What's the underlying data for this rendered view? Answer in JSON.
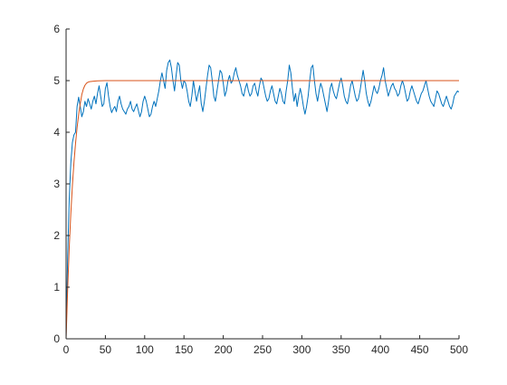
{
  "chart_data": {
    "type": "line",
    "title": "",
    "xlabel": "",
    "ylabel": "",
    "xlim": [
      0,
      500
    ],
    "ylim": [
      0,
      6
    ],
    "x_ticks": [
      0,
      50,
      100,
      150,
      200,
      250,
      300,
      350,
      400,
      450,
      500
    ],
    "y_ticks": [
      0,
      1,
      2,
      3,
      4,
      5,
      6
    ],
    "grid": false,
    "legend": "none",
    "series": [
      {
        "color": "#0072BD",
        "points": [
          [
            0,
            0
          ],
          [
            2,
            1.6
          ],
          [
            4,
            2.7
          ],
          [
            6,
            3.4
          ],
          [
            8,
            3.8
          ],
          [
            10,
            3.95
          ],
          [
            12,
            4.0
          ],
          [
            14,
            4.5
          ],
          [
            16,
            4.68
          ],
          [
            18,
            4.5
          ],
          [
            20,
            4.3
          ],
          [
            22,
            4.4
          ],
          [
            24,
            4.6
          ],
          [
            26,
            4.5
          ],
          [
            28,
            4.65
          ],
          [
            30,
            4.55
          ],
          [
            32,
            4.45
          ],
          [
            34,
            4.6
          ],
          [
            36,
            4.7
          ],
          [
            38,
            4.55
          ],
          [
            40,
            4.75
          ],
          [
            42,
            4.9
          ],
          [
            44,
            4.7
          ],
          [
            46,
            4.5
          ],
          [
            48,
            4.55
          ],
          [
            50,
            4.85
          ],
          [
            52,
            4.96
          ],
          [
            54,
            4.7
          ],
          [
            56,
            4.5
          ],
          [
            58,
            4.38
          ],
          [
            60,
            4.45
          ],
          [
            62,
            4.5
          ],
          [
            64,
            4.4
          ],
          [
            66,
            4.6
          ],
          [
            68,
            4.7
          ],
          [
            70,
            4.55
          ],
          [
            72,
            4.45
          ],
          [
            74,
            4.4
          ],
          [
            76,
            4.35
          ],
          [
            78,
            4.45
          ],
          [
            80,
            4.5
          ],
          [
            82,
            4.6
          ],
          [
            84,
            4.45
          ],
          [
            86,
            4.4
          ],
          [
            88,
            4.48
          ],
          [
            90,
            4.55
          ],
          [
            92,
            4.42
          ],
          [
            94,
            4.3
          ],
          [
            96,
            4.4
          ],
          [
            98,
            4.6
          ],
          [
            100,
            4.7
          ],
          [
            102,
            4.6
          ],
          [
            104,
            4.45
          ],
          [
            106,
            4.3
          ],
          [
            108,
            4.35
          ],
          [
            110,
            4.5
          ],
          [
            112,
            4.6
          ],
          [
            114,
            4.5
          ],
          [
            116,
            4.65
          ],
          [
            118,
            4.8
          ],
          [
            120,
            5.0
          ],
          [
            122,
            5.15
          ],
          [
            124,
            5.0
          ],
          [
            126,
            4.85
          ],
          [
            128,
            5.2
          ],
          [
            130,
            5.35
          ],
          [
            132,
            5.4
          ],
          [
            134,
            5.25
          ],
          [
            136,
            5.0
          ],
          [
            138,
            4.8
          ],
          [
            140,
            5.1
          ],
          [
            142,
            5.35
          ],
          [
            144,
            5.3
          ],
          [
            146,
            5.0
          ],
          [
            148,
            4.85
          ],
          [
            150,
            5.0
          ],
          [
            152,
            4.95
          ],
          [
            154,
            4.8
          ],
          [
            156,
            4.6
          ],
          [
            158,
            4.5
          ],
          [
            160,
            4.7
          ],
          [
            162,
            5.0
          ],
          [
            164,
            4.8
          ],
          [
            166,
            4.6
          ],
          [
            168,
            4.75
          ],
          [
            170,
            4.9
          ],
          [
            172,
            4.55
          ],
          [
            174,
            4.4
          ],
          [
            176,
            4.6
          ],
          [
            178,
            4.85
          ],
          [
            180,
            5.1
          ],
          [
            182,
            5.3
          ],
          [
            184,
            5.25
          ],
          [
            186,
            5.0
          ],
          [
            188,
            4.7
          ],
          [
            190,
            4.6
          ],
          [
            192,
            4.8
          ],
          [
            194,
            5.0
          ],
          [
            196,
            5.2
          ],
          [
            198,
            5.15
          ],
          [
            200,
            4.95
          ],
          [
            202,
            4.7
          ],
          [
            204,
            4.8
          ],
          [
            206,
            5.0
          ],
          [
            208,
            5.1
          ],
          [
            210,
            4.95
          ],
          [
            212,
            5.0
          ],
          [
            214,
            5.15
          ],
          [
            216,
            5.25
          ],
          [
            218,
            5.1
          ],
          [
            220,
            5.0
          ],
          [
            222,
            4.9
          ],
          [
            224,
            4.75
          ],
          [
            226,
            4.7
          ],
          [
            228,
            4.85
          ],
          [
            230,
            4.95
          ],
          [
            232,
            4.8
          ],
          [
            234,
            4.7
          ],
          [
            236,
            4.75
          ],
          [
            238,
            4.9
          ],
          [
            240,
            4.95
          ],
          [
            242,
            4.8
          ],
          [
            244,
            4.7
          ],
          [
            246,
            4.9
          ],
          [
            248,
            5.05
          ],
          [
            250,
            5.0
          ],
          [
            252,
            4.85
          ],
          [
            254,
            4.7
          ],
          [
            256,
            4.6
          ],
          [
            258,
            4.65
          ],
          [
            260,
            4.8
          ],
          [
            262,
            4.9
          ],
          [
            264,
            4.75
          ],
          [
            266,
            4.6
          ],
          [
            268,
            4.55
          ],
          [
            270,
            4.7
          ],
          [
            272,
            4.85
          ],
          [
            274,
            4.75
          ],
          [
            276,
            4.6
          ],
          [
            278,
            4.55
          ],
          [
            280,
            4.8
          ],
          [
            282,
            5.0
          ],
          [
            284,
            5.3
          ],
          [
            286,
            5.15
          ],
          [
            288,
            4.85
          ],
          [
            290,
            4.6
          ],
          [
            292,
            4.75
          ],
          [
            294,
            4.5
          ],
          [
            296,
            4.7
          ],
          [
            298,
            4.85
          ],
          [
            300,
            4.7
          ],
          [
            302,
            4.5
          ],
          [
            304,
            4.35
          ],
          [
            306,
            4.5
          ],
          [
            308,
            4.7
          ],
          [
            310,
            5.0
          ],
          [
            312,
            5.25
          ],
          [
            314,
            5.3
          ],
          [
            316,
            5.0
          ],
          [
            318,
            4.75
          ],
          [
            320,
            4.6
          ],
          [
            322,
            4.8
          ],
          [
            324,
            4.95
          ],
          [
            326,
            4.85
          ],
          [
            328,
            4.7
          ],
          [
            330,
            4.55
          ],
          [
            332,
            4.4
          ],
          [
            334,
            4.6
          ],
          [
            336,
            4.85
          ],
          [
            338,
            4.95
          ],
          [
            340,
            4.8
          ],
          [
            342,
            4.7
          ],
          [
            344,
            4.65
          ],
          [
            346,
            4.8
          ],
          [
            348,
            4.95
          ],
          [
            350,
            5.05
          ],
          [
            352,
            4.9
          ],
          [
            354,
            4.7
          ],
          [
            356,
            4.6
          ],
          [
            358,
            4.55
          ],
          [
            360,
            4.7
          ],
          [
            362,
            4.9
          ],
          [
            364,
            5.0
          ],
          [
            366,
            4.85
          ],
          [
            368,
            4.7
          ],
          [
            370,
            4.6
          ],
          [
            372,
            4.65
          ],
          [
            374,
            4.8
          ],
          [
            376,
            5.0
          ],
          [
            378,
            5.2
          ],
          [
            380,
            5.0
          ],
          [
            382,
            4.75
          ],
          [
            384,
            4.6
          ],
          [
            386,
            4.5
          ],
          [
            388,
            4.6
          ],
          [
            390,
            4.75
          ],
          [
            392,
            4.9
          ],
          [
            394,
            4.8
          ],
          [
            396,
            4.75
          ],
          [
            398,
            4.85
          ],
          [
            400,
            5.0
          ],
          [
            402,
            5.1
          ],
          [
            404,
            5.25
          ],
          [
            406,
            5.0
          ],
          [
            408,
            4.85
          ],
          [
            410,
            4.7
          ],
          [
            412,
            4.8
          ],
          [
            414,
            4.9
          ],
          [
            416,
            4.95
          ],
          [
            418,
            4.85
          ],
          [
            420,
            4.8
          ],
          [
            422,
            4.7
          ],
          [
            424,
            4.75
          ],
          [
            426,
            4.9
          ],
          [
            428,
            5.0
          ],
          [
            430,
            4.9
          ],
          [
            432,
            4.75
          ],
          [
            434,
            4.6
          ],
          [
            436,
            4.65
          ],
          [
            438,
            4.8
          ],
          [
            440,
            4.9
          ],
          [
            442,
            4.8
          ],
          [
            444,
            4.7
          ],
          [
            446,
            4.6
          ],
          [
            448,
            4.55
          ],
          [
            450,
            4.65
          ],
          [
            452,
            4.75
          ],
          [
            454,
            4.8
          ],
          [
            456,
            4.9
          ],
          [
            458,
            5.0
          ],
          [
            460,
            4.85
          ],
          [
            462,
            4.7
          ],
          [
            464,
            4.6
          ],
          [
            466,
            4.55
          ],
          [
            468,
            4.5
          ],
          [
            470,
            4.65
          ],
          [
            472,
            4.8
          ],
          [
            474,
            4.75
          ],
          [
            476,
            4.65
          ],
          [
            478,
            4.55
          ],
          [
            480,
            4.5
          ],
          [
            482,
            4.6
          ],
          [
            484,
            4.7
          ],
          [
            486,
            4.6
          ],
          [
            488,
            4.5
          ],
          [
            490,
            4.45
          ],
          [
            492,
            4.55
          ],
          [
            494,
            4.7
          ],
          [
            496,
            4.75
          ],
          [
            498,
            4.8
          ],
          [
            500,
            4.78
          ]
        ]
      },
      {
        "color": "#D95319",
        "points": [
          [
            0,
            0
          ],
          [
            2,
            0.96
          ],
          [
            4,
            1.76
          ],
          [
            6,
            2.42
          ],
          [
            8,
            2.96
          ],
          [
            10,
            3.41
          ],
          [
            12,
            3.78
          ],
          [
            14,
            4.09
          ],
          [
            16,
            4.34
          ],
          [
            18,
            4.55
          ],
          [
            20,
            4.73
          ],
          [
            22,
            4.84
          ],
          [
            24,
            4.91
          ],
          [
            26,
            4.95
          ],
          [
            28,
            4.97
          ],
          [
            30,
            4.98
          ],
          [
            35,
            4.99
          ],
          [
            40,
            4.995
          ],
          [
            50,
            5.0
          ],
          [
            75,
            5.0
          ],
          [
            100,
            5.0
          ],
          [
            150,
            5.0
          ],
          [
            200,
            5.0
          ],
          [
            250,
            5.0
          ],
          [
            300,
            5.0
          ],
          [
            350,
            5.0
          ],
          [
            400,
            5.0
          ],
          [
            450,
            5.0
          ],
          [
            500,
            5.0
          ]
        ]
      }
    ]
  }
}
